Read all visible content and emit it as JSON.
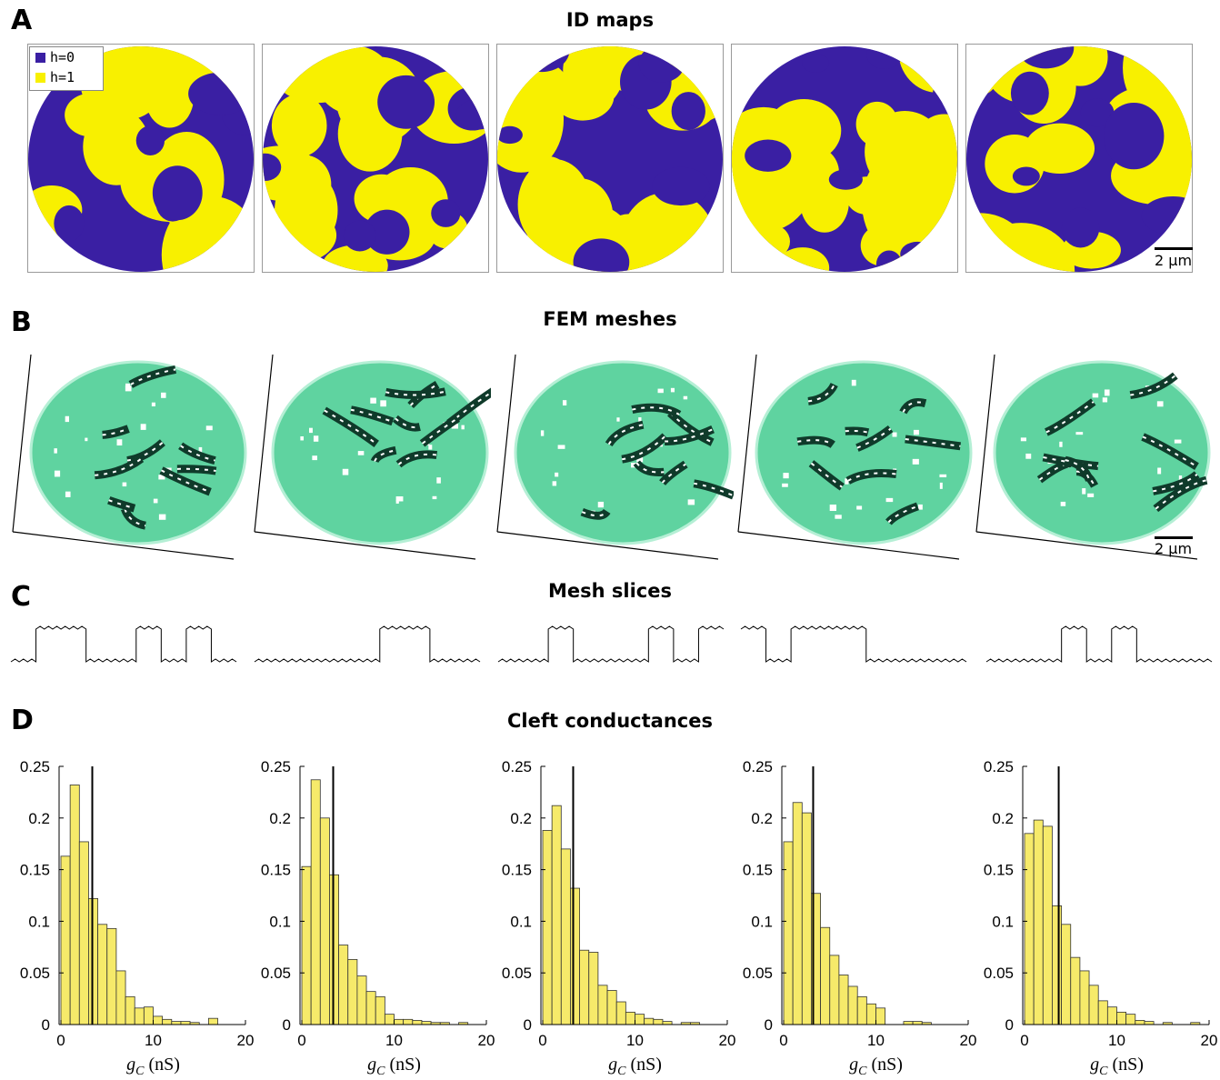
{
  "panels": {
    "A": {
      "letter": "A",
      "title": "ID maps"
    },
    "B": {
      "letter": "B",
      "title": "FEM meshes"
    },
    "C": {
      "letter": "C",
      "title": "Mesh slices"
    },
    "D": {
      "letter": "D",
      "title": "Cleft conductances"
    }
  },
  "legend": {
    "items": [
      {
        "label": "h=0",
        "color": "#3a1fa3"
      },
      {
        "label": "h=1",
        "color": "#f8f000"
      }
    ]
  },
  "scalebar_label": "2 μm",
  "colors": {
    "h0": "#3a1fa3",
    "h1": "#f8f000",
    "mesh_fill": "#5fd3a0",
    "mesh_dark": "#0f3a2a",
    "hist_fill": "#f6ea6a",
    "hist_edge": "#333333"
  },
  "chart_data": [
    {
      "type": "bar",
      "xlabel": "g_C (nS)",
      "xlim": [
        0,
        20
      ],
      "ylim": [
        0,
        0.25
      ],
      "xticks": [
        0,
        10,
        20
      ],
      "yticks": [
        0,
        0.05,
        0.1,
        0.15,
        0.2,
        0.25
      ],
      "bin_width": 1,
      "bin_starts": [
        0,
        1,
        2,
        3,
        4,
        5,
        6,
        7,
        8,
        9,
        10,
        11,
        12,
        13,
        14,
        15,
        16,
        17
      ],
      "values": [
        0.163,
        0.232,
        0.177,
        0.122,
        0.097,
        0.093,
        0.052,
        0.027,
        0.016,
        0.017,
        0.008,
        0.005,
        0.003,
        0.003,
        0.002,
        0,
        0.006,
        0
      ],
      "mean_line": 3.4
    },
    {
      "type": "bar",
      "xlabel": "g_C (nS)",
      "xlim": [
        0,
        20
      ],
      "ylim": [
        0,
        0.25
      ],
      "xticks": [
        0,
        10,
        20
      ],
      "yticks": [
        0,
        0.05,
        0.1,
        0.15,
        0.2,
        0.25
      ],
      "bin_width": 1,
      "bin_starts": [
        0,
        1,
        2,
        3,
        4,
        5,
        6,
        7,
        8,
        9,
        10,
        11,
        12,
        13,
        14,
        15,
        16,
        17
      ],
      "values": [
        0.153,
        0.237,
        0.2,
        0.145,
        0.077,
        0.063,
        0.047,
        0.032,
        0.027,
        0.01,
        0.005,
        0.005,
        0.004,
        0.003,
        0.002,
        0.002,
        0,
        0.002
      ],
      "mean_line": 3.4
    },
    {
      "type": "bar",
      "xlabel": "g_C (nS)",
      "xlim": [
        0,
        20
      ],
      "ylim": [
        0,
        0.25
      ],
      "xticks": [
        0,
        10,
        20
      ],
      "yticks": [
        0,
        0.05,
        0.1,
        0.15,
        0.2,
        0.25
      ],
      "bin_width": 1,
      "bin_starts": [
        0,
        1,
        2,
        3,
        4,
        5,
        6,
        7,
        8,
        9,
        10,
        11,
        12,
        13,
        14,
        15,
        16,
        17
      ],
      "values": [
        0.188,
        0.212,
        0.17,
        0.132,
        0.072,
        0.07,
        0.038,
        0.033,
        0.022,
        0.012,
        0.01,
        0.006,
        0.005,
        0.003,
        0,
        0.002,
        0.002,
        0
      ],
      "mean_line": 3.3
    },
    {
      "type": "bar",
      "xlabel": "g_C (nS)",
      "xlim": [
        0,
        20
      ],
      "ylim": [
        0,
        0.25
      ],
      "xticks": [
        0,
        10,
        20
      ],
      "yticks": [
        0,
        0.05,
        0.1,
        0.15,
        0.2,
        0.25
      ],
      "bin_width": 1,
      "bin_starts": [
        0,
        1,
        2,
        3,
        4,
        5,
        6,
        7,
        8,
        9,
        10,
        11,
        12,
        13,
        14,
        15,
        16,
        17
      ],
      "values": [
        0.177,
        0.215,
        0.205,
        0.127,
        0.094,
        0.067,
        0.048,
        0.037,
        0.027,
        0.02,
        0.016,
        0,
        0,
        0.003,
        0.003,
        0.002,
        0,
        0
      ],
      "mean_line": 3.2
    },
    {
      "type": "bar",
      "xlabel": "g_C (nS)",
      "xlim": [
        0,
        20
      ],
      "ylim": [
        0,
        0.25
      ],
      "xticks": [
        0,
        10,
        20
      ],
      "yticks": [
        0,
        0.05,
        0.1,
        0.15,
        0.2,
        0.25
      ],
      "bin_width": 1,
      "bin_starts": [
        0,
        1,
        2,
        3,
        4,
        5,
        6,
        7,
        8,
        9,
        10,
        11,
        12,
        13,
        14,
        15,
        16,
        17,
        18
      ],
      "values": [
        0.185,
        0.198,
        0.192,
        0.115,
        0.097,
        0.065,
        0.052,
        0.038,
        0.023,
        0.017,
        0.012,
        0.01,
        0.004,
        0.003,
        0,
        0.002,
        0,
        0,
        0.002
      ],
      "mean_line": 3.7
    }
  ]
}
